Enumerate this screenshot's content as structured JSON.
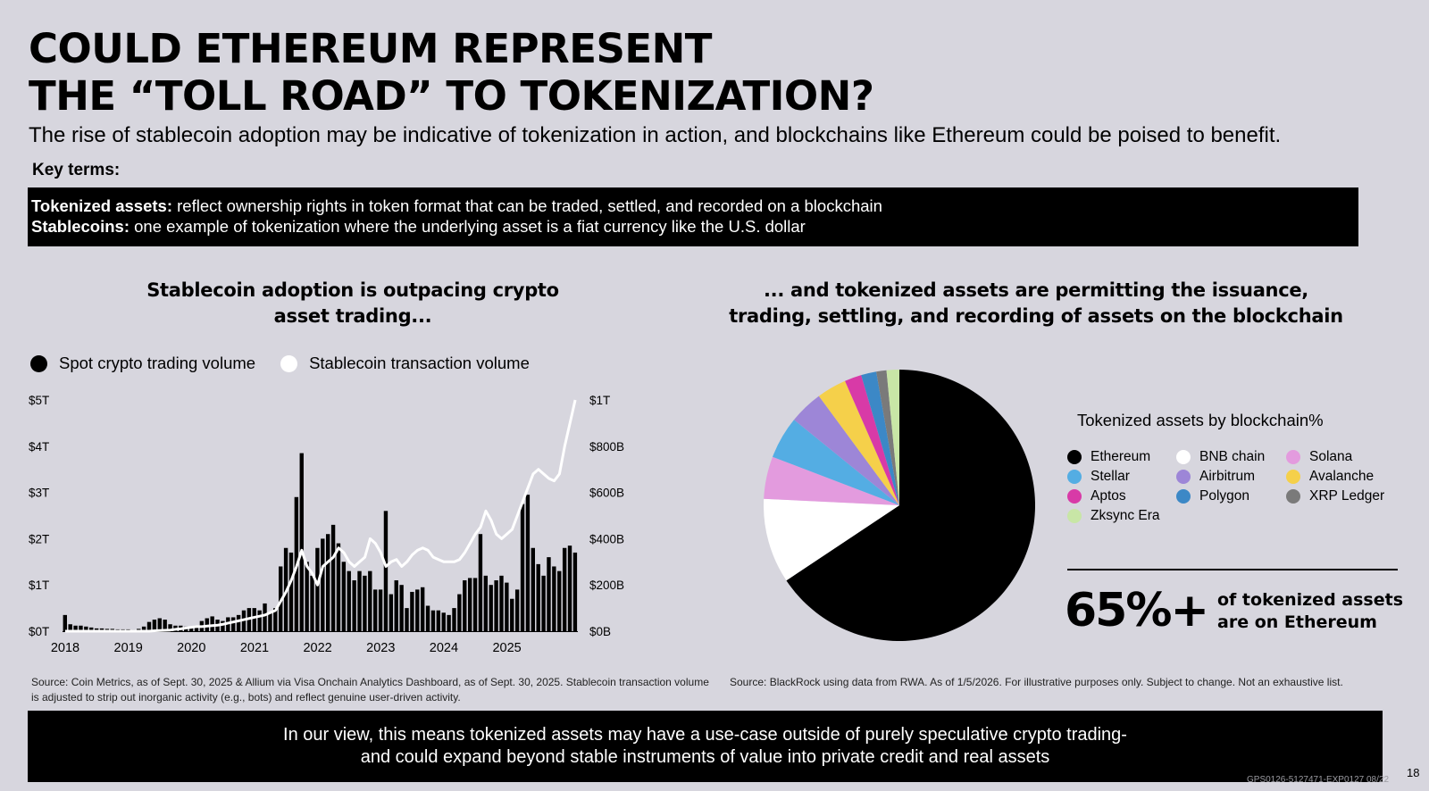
{
  "page": {
    "title_lines": [
      "COULD ETHEREUM REPRESENT",
      "THE “TOLL ROAD” TO TOKENIZATION?"
    ],
    "subtitle": "The rise of stablecoin adoption may be indicative of tokenization in action, and blockchains like Ethereum could be poised to benefit.",
    "key_terms_heading": "Key terms:",
    "definitions": [
      {
        "term": "Tokenized assets:",
        "text": " reflect ownership rights in token format that can be traded, settled, and recorded on a blockchain"
      },
      {
        "term": "Stablecoins:",
        "text": " one example of tokenization where the underlying asset is a fiat currency like the U.S. dollar"
      }
    ],
    "left_source_lines": [
      "Source: Coin Metrics, as of Sept. 30, 2025 & Allium via Visa Onchain Analytics Dashboard, as of Sept. 30, 2025. Stablecoin transaction volume",
      "is adjusted to strip out inorganic activity (e.g., bots) and reflect genuine user-driven activity."
    ],
    "right_source": "Source: BlackRock using data from RWA. As of 1/5/2026. For illustrative purposes only. Subject to change. Not an exhaustive list.",
    "footer_lines": [
      "In our view, this means tokenized assets may have a use-case outside of purely speculative crypto trading-",
      "and could expand beyond stable instruments of value into private credit and real assets"
    ],
    "page_number": "18",
    "fine_print": "GPS0126-5127471-EXP0127 08/22"
  },
  "chart_data": [
    {
      "type": "bar",
      "title_lines": [
        "Stablecoin adoption is outpacing crypto",
        "asset trading..."
      ],
      "x_tick_labels": [
        "2018",
        "2019",
        "2020",
        "2021",
        "2022",
        "2023",
        "2024",
        "2025"
      ],
      "y_left_tick_labels": [
        "$0T",
        "$1T",
        "$2T",
        "$3T",
        "$4T",
        "$5T"
      ],
      "y_right_tick_labels": [
        "$0B",
        "$200B",
        "$400B",
        "$600B",
        "$800B",
        "$1T"
      ],
      "ylim_left": [
        0,
        5
      ],
      "ylim_right": [
        0,
        1000
      ],
      "legend_position": "top-left",
      "grid": false,
      "series": [
        {
          "name": "Spot crypto trading volume",
          "type": "bar",
          "axis": "left",
          "unit": "$T",
          "color": "#000000",
          "values": [
            0.35,
            0.15,
            0.12,
            0.12,
            0.1,
            0.08,
            0.06,
            0.06,
            0.05,
            0.05,
            0.04,
            0.04,
            0.04,
            0.03,
            0.05,
            0.1,
            0.2,
            0.25,
            0.28,
            0.25,
            0.15,
            0.12,
            0.12,
            0.1,
            0.1,
            0.12,
            0.22,
            0.28,
            0.32,
            0.25,
            0.22,
            0.3,
            0.3,
            0.35,
            0.45,
            0.5,
            0.5,
            0.45,
            0.6,
            0.4,
            0.5,
            1.4,
            1.8,
            1.7,
            2.9,
            3.85,
            1.5,
            1.2,
            1.8,
            2.0,
            2.1,
            2.3,
            1.9,
            1.5,
            1.3,
            1.1,
            1.3,
            1.2,
            1.3,
            0.9,
            0.9,
            2.6,
            0.8,
            1.1,
            1.0,
            0.5,
            0.85,
            0.9,
            0.95,
            0.55,
            0.45,
            0.45,
            0.4,
            0.35,
            0.5,
            0.8,
            1.1,
            1.15,
            1.15,
            2.1,
            1.2,
            1.0,
            1.1,
            1.2,
            1.05,
            0.7,
            0.9,
            2.75,
            2.95,
            1.8,
            1.45,
            1.2,
            1.6,
            1.4,
            1.3,
            1.8,
            1.85,
            1.7
          ]
        },
        {
          "name": "Stablecoin transaction volume",
          "type": "line",
          "axis": "right",
          "unit": "$B",
          "color": "#ffffff",
          "values": [
            0,
            0,
            0,
            0,
            0,
            0,
            0,
            0,
            0,
            0,
            0,
            0,
            0,
            0,
            0,
            0,
            0,
            2,
            3,
            4,
            5,
            8,
            10,
            14,
            17,
            20,
            20,
            22,
            24,
            26,
            30,
            35,
            40,
            45,
            50,
            55,
            60,
            65,
            70,
            80,
            90,
            130,
            170,
            220,
            280,
            350,
            280,
            250,
            200,
            280,
            300,
            320,
            360,
            340,
            300,
            280,
            300,
            320,
            400,
            380,
            340,
            280,
            300,
            310,
            280,
            300,
            330,
            350,
            360,
            350,
            320,
            310,
            300,
            300,
            300,
            310,
            340,
            380,
            420,
            450,
            520,
            480,
            420,
            400,
            420,
            440,
            500,
            560,
            620,
            680,
            700,
            680,
            660,
            650,
            680,
            800,
            900,
            1000
          ]
        }
      ]
    },
    {
      "type": "pie",
      "title_lines": [
        "... and  tokenized assets are permitting the issuance,",
        "trading, settling, and recording of assets on the blockchain"
      ],
      "legend_title": "Tokenized assets by blockchain%",
      "legend_position": "right",
      "slices": [
        {
          "label": "Ethereum",
          "value": 65,
          "color": "#000000"
        },
        {
          "label": "BNB chain",
          "value": 10,
          "color": "#ffffff"
        },
        {
          "label": "Solana",
          "value": 5,
          "color": "#e39bde"
        },
        {
          "label": "Stellar",
          "value": 5,
          "color": "#54ade3"
        },
        {
          "label": "Airbitrum",
          "value": 4,
          "color": "#9d86d7"
        },
        {
          "label": "Avalanche",
          "value": 3.5,
          "color": "#f5d04a"
        },
        {
          "label": "Aptos",
          "value": 2,
          "color": "#d83aa7"
        },
        {
          "label": "Polygon",
          "value": 1.8,
          "color": "#3c88c6"
        },
        {
          "label": "XRP Ledger",
          "value": 1.2,
          "color": "#7a7a7a"
        },
        {
          "label": "Zksync Era",
          "value": 1.5,
          "color": "#c8e6a6"
        }
      ],
      "callout": {
        "value": "65%+",
        "caption_lines": [
          "of tokenized assets",
          "are on Ethereum"
        ]
      }
    }
  ]
}
